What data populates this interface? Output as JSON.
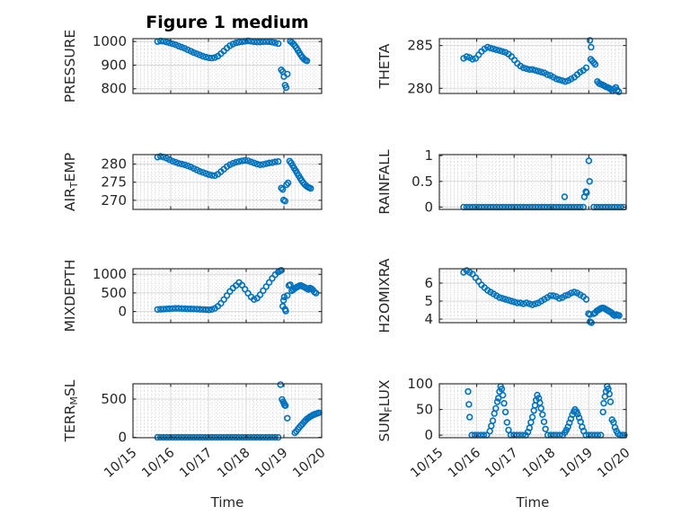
{
  "title": "Figure 1 medium",
  "xlabel": "Time",
  "x_tick_labels": [
    "10/15",
    "10/16",
    "10/17",
    "10/18",
    "10/19",
    "10/20"
  ],
  "colors": {
    "marker": "#0072BD",
    "axis": "#262626",
    "grid": "#d9d9d9",
    "minor_grid": "#c9c9c9",
    "tick_label": "#262626",
    "title": "#000000",
    "background": "#ffffff"
  },
  "marker_style": {
    "shape": "open-circle",
    "color": "#0072BD"
  },
  "chart_data": [
    {
      "id": "pressure",
      "type": "scatter",
      "row": 0,
      "col": 0,
      "ylabel": "PRESSURE",
      "ylabel_parts": [
        [
          "PRESSURE",
          false
        ]
      ],
      "xlim": [
        0,
        5
      ],
      "ylim": [
        780,
        1012
      ],
      "yticks": [
        800,
        900,
        1000
      ],
      "ytick_labels": [
        "800",
        "900",
        "1000"
      ],
      "x": [
        0.65,
        0.73,
        0.81,
        0.89,
        0.97,
        1.05,
        1.13,
        1.21,
        1.29,
        1.37,
        1.45,
        1.53,
        1.61,
        1.69,
        1.77,
        1.85,
        1.93,
        2.01,
        2.09,
        2.17,
        2.25,
        2.33,
        2.41,
        2.49,
        2.57,
        2.65,
        2.73,
        2.81,
        2.89,
        2.97,
        3.05,
        3.13,
        3.21,
        3.29,
        3.37,
        3.45,
        3.53,
        3.61,
        3.69,
        3.77,
        3.85,
        3.93,
        3.97,
        4.0,
        4.03,
        4.06,
        4.09,
        4.17,
        4.21,
        4.25,
        4.29,
        4.33,
        4.37,
        4.41,
        4.45,
        4.49,
        4.53,
        4.57,
        4.61
      ],
      "y": [
        1000,
        1002,
        1001,
        998,
        994,
        990,
        986,
        981,
        976,
        971,
        965,
        959,
        953,
        948,
        943,
        938,
        934,
        931,
        930,
        932,
        938,
        948,
        960,
        972,
        982,
        989,
        994,
        997,
        999,
        1001,
        1003,
        1001,
        999,
        998,
        998,
        999,
        1000,
        999,
        997,
        994,
        991,
        880,
        872,
        852,
        815,
        805,
        862,
        1001,
        996,
        990,
        982,
        973,
        963,
        952,
        942,
        933,
        926,
        921,
        918
      ]
    },
    {
      "id": "theta",
      "type": "scatter",
      "row": 0,
      "col": 1,
      "ylabel": "THETA",
      "ylabel_parts": [
        [
          "THETA",
          false
        ]
      ],
      "xlim": [
        0,
        5
      ],
      "ylim": [
        279.4,
        285.8
      ],
      "yticks": [
        280,
        285
      ],
      "ytick_labels": [
        "280",
        "285"
      ],
      "x": [
        0.65,
        0.73,
        0.81,
        0.89,
        0.97,
        1.05,
        1.13,
        1.21,
        1.29,
        1.37,
        1.45,
        1.53,
        1.61,
        1.69,
        1.77,
        1.85,
        1.93,
        2.01,
        2.09,
        2.17,
        2.25,
        2.33,
        2.41,
        2.49,
        2.57,
        2.65,
        2.73,
        2.81,
        2.89,
        2.97,
        3.05,
        3.13,
        3.21,
        3.29,
        3.37,
        3.45,
        3.53,
        3.61,
        3.69,
        3.77,
        3.85,
        3.93,
        4.03,
        4.06,
        4.05,
        4.09,
        4.13,
        4.17,
        4.23,
        4.27,
        4.31,
        4.37,
        4.41,
        4.45,
        4.51,
        4.55,
        4.59,
        4.63,
        4.67,
        4.72,
        4.76,
        4.8
      ],
      "y": [
        283.5,
        283.7,
        283.6,
        283.4,
        283.5,
        283.9,
        284.3,
        284.6,
        284.8,
        284.7,
        284.6,
        284.5,
        284.4,
        284.3,
        284.2,
        284.0,
        283.7,
        283.3,
        282.9,
        282.6,
        282.4,
        282.3,
        282.2,
        282.2,
        282.1,
        282.0,
        281.9,
        281.8,
        281.6,
        281.5,
        281.3,
        281.1,
        281.0,
        280.9,
        280.8,
        280.9,
        281.1,
        281.3,
        281.6,
        281.9,
        282.1,
        282.4,
        285.6,
        284.8,
        283.4,
        283.2,
        283.0,
        282.8,
        280.8,
        280.6,
        280.5,
        280.4,
        280.3,
        280.2,
        280.1,
        280.0,
        279.9,
        279.7,
        279.9,
        280.1,
        279.8,
        279.6
      ]
    },
    {
      "id": "airtemp",
      "type": "scatter",
      "row": 1,
      "col": 0,
      "ylabel": "AIR_TEMP",
      "ylabel_parts": [
        [
          "AIR",
          false
        ],
        [
          "T",
          true
        ],
        [
          "EMP",
          false
        ]
      ],
      "xlim": [
        0,
        5
      ],
      "ylim": [
        267.5,
        282.6
      ],
      "yticks": [
        270,
        275,
        280
      ],
      "ytick_labels": [
        "270",
        "275",
        "280"
      ],
      "x": [
        0.65,
        0.73,
        0.81,
        0.89,
        0.97,
        1.05,
        1.13,
        1.21,
        1.29,
        1.37,
        1.45,
        1.53,
        1.61,
        1.69,
        1.77,
        1.85,
        1.93,
        2.01,
        2.09,
        2.17,
        2.25,
        2.33,
        2.41,
        2.49,
        2.57,
        2.65,
        2.73,
        2.81,
        2.89,
        2.97,
        3.05,
        3.13,
        3.21,
        3.29,
        3.37,
        3.45,
        3.53,
        3.61,
        3.69,
        3.77,
        3.85,
        3.93,
        3.97,
        3.99,
        4.03,
        4.07,
        4.11,
        4.15,
        4.19,
        4.23,
        4.27,
        4.31,
        4.35,
        4.39,
        4.43,
        4.47,
        4.51,
        4.55,
        4.59,
        4.63,
        4.67,
        4.71
      ],
      "y": [
        281.9,
        282.1,
        281.9,
        281.6,
        281.2,
        280.8,
        280.5,
        280.2,
        280.0,
        279.8,
        279.5,
        279.2,
        278.8,
        278.4,
        278.0,
        277.7,
        277.4,
        277.1,
        276.9,
        276.8,
        277.2,
        277.9,
        278.6,
        279.3,
        279.8,
        280.2,
        280.5,
        280.7,
        280.9,
        281.0,
        280.9,
        280.6,
        280.3,
        280.0,
        279.8,
        279.9,
        280.1,
        280.3,
        280.4,
        280.6,
        280.7,
        273.4,
        273.0,
        270.1,
        269.8,
        274.3,
        274.8,
        280.8,
        280.3,
        279.6,
        278.9,
        278.2,
        277.5,
        276.8,
        276.1,
        275.5,
        274.9,
        274.4,
        274.0,
        273.7,
        273.5,
        273.3
      ]
    },
    {
      "id": "rainfall",
      "type": "scatter",
      "row": 1,
      "col": 1,
      "ylabel": "RAINFALL",
      "ylabel_parts": [
        [
          "RAINFALL",
          false
        ]
      ],
      "xlim": [
        0,
        5
      ],
      "ylim": [
        -0.045,
        1.02
      ],
      "yticks": [
        0,
        0.5,
        1
      ],
      "ytick_labels": [
        "0",
        "0.5",
        "1"
      ],
      "x": [
        0.65,
        0.73,
        0.81,
        0.89,
        0.97,
        1.05,
        1.13,
        1.21,
        1.29,
        1.37,
        1.45,
        1.53,
        1.61,
        1.69,
        1.77,
        1.85,
        1.93,
        2.01,
        2.09,
        2.17,
        2.25,
        2.33,
        2.41,
        2.49,
        2.57,
        2.65,
        2.73,
        2.81,
        2.89,
        2.97,
        3.05,
        3.13,
        3.21,
        3.29,
        3.37,
        3.45,
        3.53,
        3.61,
        3.69,
        3.77,
        3.85,
        3.35,
        3.88,
        3.92,
        3.94,
        4.02,
        4.0,
        4.13,
        4.21,
        4.29,
        4.37,
        4.45,
        4.53,
        4.61,
        4.69,
        4.77,
        4.85,
        4.93
      ],
      "y": [
        0,
        0,
        0,
        0,
        0,
        0,
        0,
        0,
        0,
        0,
        0,
        0,
        0,
        0,
        0,
        0,
        0,
        0,
        0,
        0,
        0,
        0,
        0,
        0,
        0,
        0,
        0,
        0,
        0,
        0,
        0,
        0,
        0,
        0,
        0,
        0,
        0,
        0,
        0,
        0,
        0,
        0.2,
        0.2,
        0.3,
        0.28,
        0.5,
        0.9,
        0,
        0,
        0,
        0,
        0,
        0,
        0,
        0,
        0,
        0,
        0
      ]
    },
    {
      "id": "mixdepth",
      "type": "scatter",
      "row": 2,
      "col": 0,
      "ylabel": "MIXDEPTH",
      "ylabel_parts": [
        [
          "MIXDEPTH",
          false
        ]
      ],
      "xlim": [
        0,
        5
      ],
      "ylim": [
        -300,
        1150
      ],
      "yticks": [
        0,
        500,
        1000
      ],
      "ytick_labels": [
        "0",
        "500",
        "1000"
      ],
      "x": [
        0.65,
        0.73,
        0.81,
        0.89,
        0.97,
        1.05,
        1.13,
        1.21,
        1.29,
        1.37,
        1.45,
        1.53,
        1.61,
        1.69,
        1.77,
        1.85,
        1.93,
        2.01,
        2.09,
        2.17,
        2.25,
        2.33,
        2.41,
        2.49,
        2.57,
        2.65,
        2.73,
        2.81,
        2.89,
        2.97,
        3.05,
        3.13,
        3.21,
        3.29,
        3.37,
        3.45,
        3.53,
        3.61,
        3.69,
        3.77,
        3.85,
        3.89,
        3.93,
        3.97,
        3.99,
        4.01,
        4.03,
        4.05,
        4.09,
        4.13,
        4.17,
        4.21,
        4.25,
        4.29,
        4.33,
        4.37,
        4.41,
        4.45,
        4.49,
        4.53,
        4.57,
        4.61,
        4.65,
        4.69,
        4.73,
        4.77,
        4.81,
        4.85
      ],
      "y": [
        55,
        60,
        65,
        70,
        75,
        80,
        85,
        85,
        80,
        75,
        72,
        70,
        68,
        65,
        60,
        55,
        50,
        45,
        55,
        85,
        140,
        220,
        320,
        430,
        540,
        630,
        700,
        780,
        710,
        600,
        490,
        390,
        320,
        360,
        450,
        560,
        670,
        780,
        890,
        990,
        1060,
        1090,
        1110,
        140,
        300,
        390,
        60,
        15,
        430,
        700,
        720,
        560,
        590,
        620,
        650,
        670,
        690,
        700,
        680,
        660,
        640,
        615,
        595,
        630,
        610,
        580,
        525,
        495
      ]
    },
    {
      "id": "h2omixra",
      "type": "scatter",
      "row": 2,
      "col": 1,
      "ylabel": "H2OMIXRA",
      "ylabel_parts": [
        [
          "H2OMIXRA",
          false
        ]
      ],
      "xlim": [
        0,
        5
      ],
      "ylim": [
        3.8,
        6.8
      ],
      "yticks": [
        4,
        5,
        6
      ],
      "ytick_labels": [
        "4",
        "5",
        "6"
      ],
      "x": [
        0.65,
        0.73,
        0.81,
        0.89,
        0.97,
        1.05,
        1.13,
        1.21,
        1.29,
        1.37,
        1.45,
        1.53,
        1.61,
        1.69,
        1.77,
        1.85,
        1.93,
        2.01,
        2.09,
        2.17,
        2.25,
        2.33,
        2.41,
        2.49,
        2.57,
        2.65,
        2.73,
        2.81,
        2.89,
        2.97,
        3.05,
        3.13,
        3.21,
        3.29,
        3.37,
        3.45,
        3.53,
        3.61,
        3.69,
        3.77,
        3.85,
        3.93,
        3.99,
        4.03,
        4.03,
        4.07,
        4.13,
        4.17,
        4.21,
        4.25,
        4.29,
        4.33,
        4.37,
        4.41,
        4.45,
        4.49,
        4.53,
        4.57,
        4.61,
        4.65,
        4.69,
        4.73,
        4.77,
        4.81
      ],
      "y": [
        6.6,
        6.7,
        6.6,
        6.5,
        6.3,
        6.1,
        5.9,
        5.75,
        5.6,
        5.5,
        5.4,
        5.3,
        5.2,
        5.15,
        5.1,
        5.05,
        5.0,
        4.95,
        4.9,
        4.9,
        4.85,
        4.9,
        4.85,
        4.8,
        4.85,
        4.9,
        5.0,
        5.1,
        5.2,
        5.3,
        5.3,
        5.25,
        5.15,
        5.2,
        5.3,
        5.35,
        5.45,
        5.5,
        5.45,
        5.35,
        5.25,
        5.1,
        4.3,
        4.25,
        3.85,
        3.8,
        4.3,
        4.35,
        4.45,
        4.5,
        4.55,
        4.6,
        4.62,
        4.6,
        4.55,
        4.5,
        4.45,
        4.4,
        4.35,
        4.25,
        4.2,
        4.25,
        4.22,
        4.2
      ]
    },
    {
      "id": "terrmsl",
      "type": "scatter",
      "row": 3,
      "col": 0,
      "ylabel": "TERR_MSL",
      "ylabel_parts": [
        [
          "TERR",
          false
        ],
        [
          "M",
          true
        ],
        [
          "SL",
          false
        ]
      ],
      "xlim": [
        0,
        5
      ],
      "ylim": [
        -5,
        700
      ],
      "yticks": [
        0,
        500
      ],
      "ytick_labels": [
        "0",
        "500"
      ],
      "x": [
        0.65,
        0.73,
        0.81,
        0.89,
        0.97,
        1.05,
        1.13,
        1.21,
        1.29,
        1.37,
        1.45,
        1.53,
        1.61,
        1.69,
        1.77,
        1.85,
        1.93,
        2.01,
        2.09,
        2.17,
        2.25,
        2.33,
        2.41,
        2.49,
        2.57,
        2.65,
        2.73,
        2.81,
        2.89,
        2.97,
        3.05,
        3.13,
        3.21,
        3.29,
        3.37,
        3.45,
        3.53,
        3.61,
        3.69,
        3.77,
        3.85,
        3.91,
        3.95,
        3.98,
        4.0,
        4.02,
        4.04,
        4.09,
        4.29,
        4.33,
        4.37,
        4.41,
        4.45,
        4.49,
        4.53,
        4.57,
        4.61,
        4.65,
        4.69,
        4.73,
        4.77,
        4.81,
        4.85,
        4.89,
        4.93
      ],
      "y": [
        0,
        0,
        0,
        0,
        0,
        0,
        0,
        0,
        0,
        0,
        0,
        0,
        0,
        0,
        0,
        0,
        0,
        0,
        0,
        0,
        0,
        0,
        0,
        0,
        0,
        0,
        0,
        0,
        0,
        0,
        0,
        0,
        0,
        0,
        0,
        0,
        0,
        0,
        0,
        0,
        0,
        690,
        495,
        465,
        445,
        420,
        415,
        250,
        60,
        80,
        105,
        130,
        155,
        175,
        200,
        220,
        240,
        255,
        270,
        280,
        292,
        300,
        308,
        315,
        320
      ]
    },
    {
      "id": "sunflux",
      "type": "scatter",
      "row": 3,
      "col": 1,
      "ylabel": "SUN_FLUX",
      "ylabel_parts": [
        [
          "SUN",
          false
        ],
        [
          "F",
          true
        ],
        [
          "LUX",
          false
        ]
      ],
      "xlim": [
        0,
        5
      ],
      "ylim": [
        -5,
        100
      ],
      "yticks": [
        0,
        50,
        100
      ],
      "ytick_labels": [
        "0",
        "50",
        "100"
      ],
      "x": [
        0.77,
        0.79,
        0.81,
        0.87,
        0.95,
        1.03,
        1.11,
        1.19,
        1.27,
        1.35,
        1.39,
        1.43,
        1.47,
        1.51,
        1.55,
        1.58,
        1.61,
        1.64,
        1.67,
        1.7,
        1.73,
        1.77,
        1.81,
        1.85,
        1.91,
        1.99,
        2.07,
        2.15,
        2.23,
        2.31,
        2.37,
        2.41,
        2.45,
        2.49,
        2.53,
        2.56,
        2.59,
        2.62,
        2.66,
        2.69,
        2.72,
        2.76,
        2.8,
        2.84,
        2.9,
        2.98,
        3.06,
        3.14,
        3.22,
        3.3,
        3.36,
        3.4,
        3.44,
        3.48,
        3.52,
        3.56,
        3.6,
        3.63,
        3.67,
        3.7,
        3.74,
        3.78,
        3.82,
        3.86,
        3.92,
        4.0,
        4.08,
        4.16,
        4.24,
        4.32,
        4.38,
        4.4,
        4.43,
        4.46,
        4.49,
        4.52,
        4.55,
        4.58,
        4.62,
        4.66,
        4.7,
        4.74,
        4.78,
        4.84,
        4.9,
        4.95
      ],
      "y": [
        85,
        60,
        35,
        0,
        0,
        0,
        0,
        0,
        0,
        8,
        18,
        28,
        42,
        52,
        65,
        72,
        85,
        95,
        90,
        78,
        62,
        45,
        25,
        10,
        0,
        0,
        0,
        0,
        0,
        0,
        6,
        14,
        25,
        35,
        48,
        58,
        68,
        78,
        72,
        63,
        52,
        40,
        26,
        12,
        0,
        0,
        0,
        0,
        0,
        0,
        5,
        10,
        16,
        24,
        32,
        40,
        46,
        50,
        46,
        41,
        34,
        26,
        16,
        8,
        0,
        0,
        0,
        0,
        0,
        0,
        45,
        62,
        75,
        85,
        95,
        90,
        80,
        65,
        30,
        25,
        15,
        8,
        3,
        0,
        0,
        0
      ]
    }
  ]
}
